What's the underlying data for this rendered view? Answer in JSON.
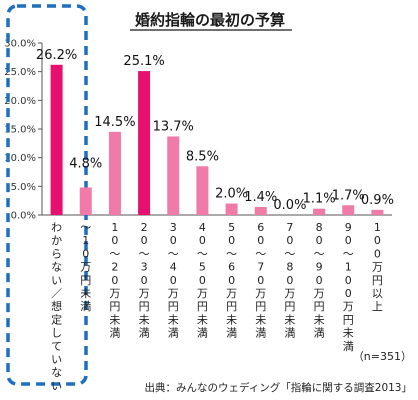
{
  "chart_data": {
    "type": "bar",
    "title": "婚約指輪の最初の予算",
    "categories": [
      "わからない／想定していない",
      "～10万円未満",
      "10～20万円未満",
      "20～30万円未満",
      "30～40万円未満",
      "40～50万円未満",
      "50～60万円未満",
      "60～70万円未満",
      "70～80万円未満",
      "80～90万円未満",
      "90～100万円未満",
      "100万円以上"
    ],
    "values": [
      26.2,
      4.8,
      14.5,
      25.1,
      13.7,
      8.5,
      2.0,
      1.4,
      0.0,
      1.1,
      1.7,
      0.9
    ],
    "value_labels": [
      "26.2%",
      "4.8%",
      "14.5%",
      "25.1%",
      "13.7%",
      "8.5%",
      "2.0%",
      "1.4%",
      "0.0%",
      "1.1%",
      "1.7%",
      "0.9%"
    ],
    "yticks": [
      "0.0%",
      "5.0%",
      "10.0%",
      "15.0%",
      "20.0%",
      "25.0%",
      "30.0%"
    ],
    "ylim": [
      0,
      30
    ],
    "grid": false,
    "highlight_indices": [
      0,
      3
    ],
    "colors": {
      "highlight": "#e8106e",
      "normal": "#f07aa8",
      "dashed_box": "#1f6fbf"
    },
    "note": "（n=351）",
    "source": "出典：みんなのウェディング「指輪に関する調査2013」"
  }
}
